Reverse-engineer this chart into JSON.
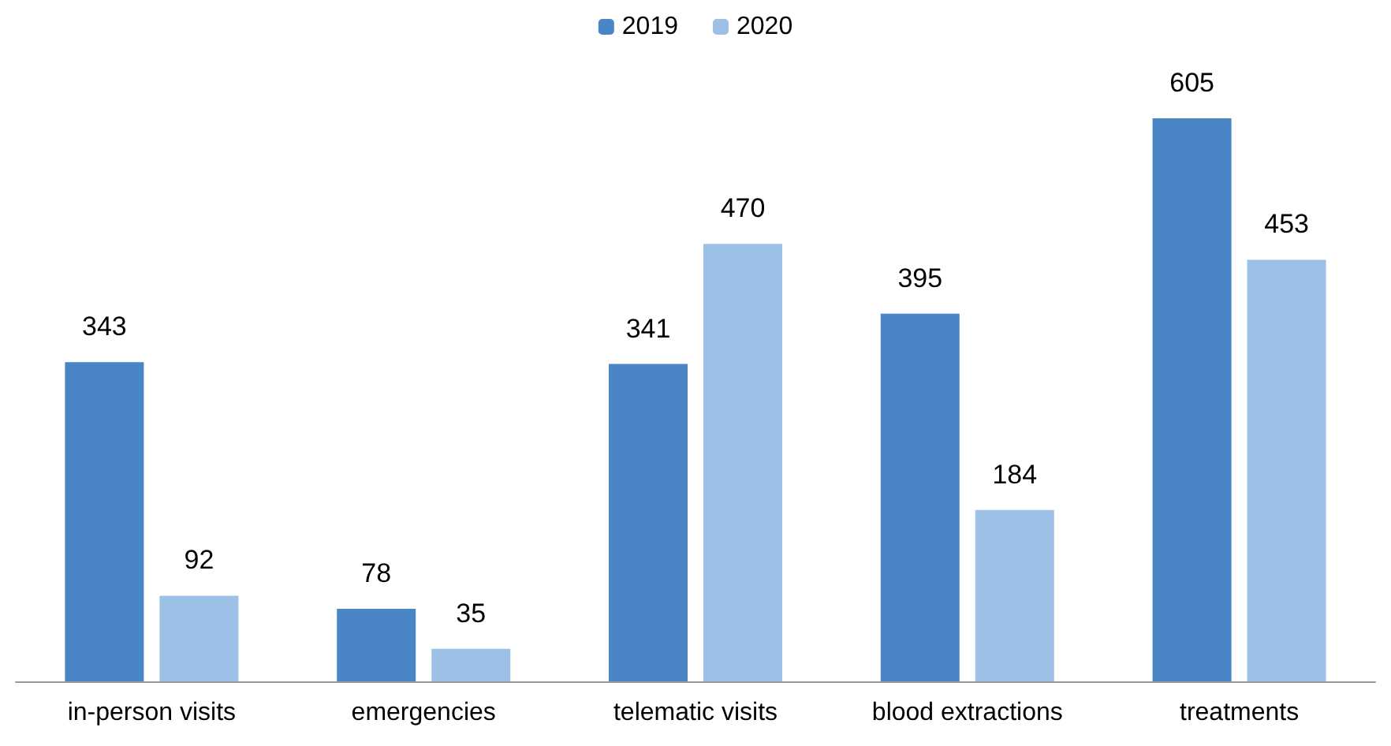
{
  "chart_data": {
    "type": "bar",
    "categories": [
      "in-person visits",
      "emergencies",
      "telematic visits",
      "blood extractions",
      "treatments"
    ],
    "series": [
      {
        "name": "2019",
        "color": "#4a86c5",
        "values": [
          343,
          78,
          341,
          395,
          605
        ]
      },
      {
        "name": "2020",
        "color": "#9dc0e6",
        "values": [
          92,
          35,
          470,
          184,
          453
        ]
      }
    ],
    "data_labels": true,
    "legend": "top"
  }
}
